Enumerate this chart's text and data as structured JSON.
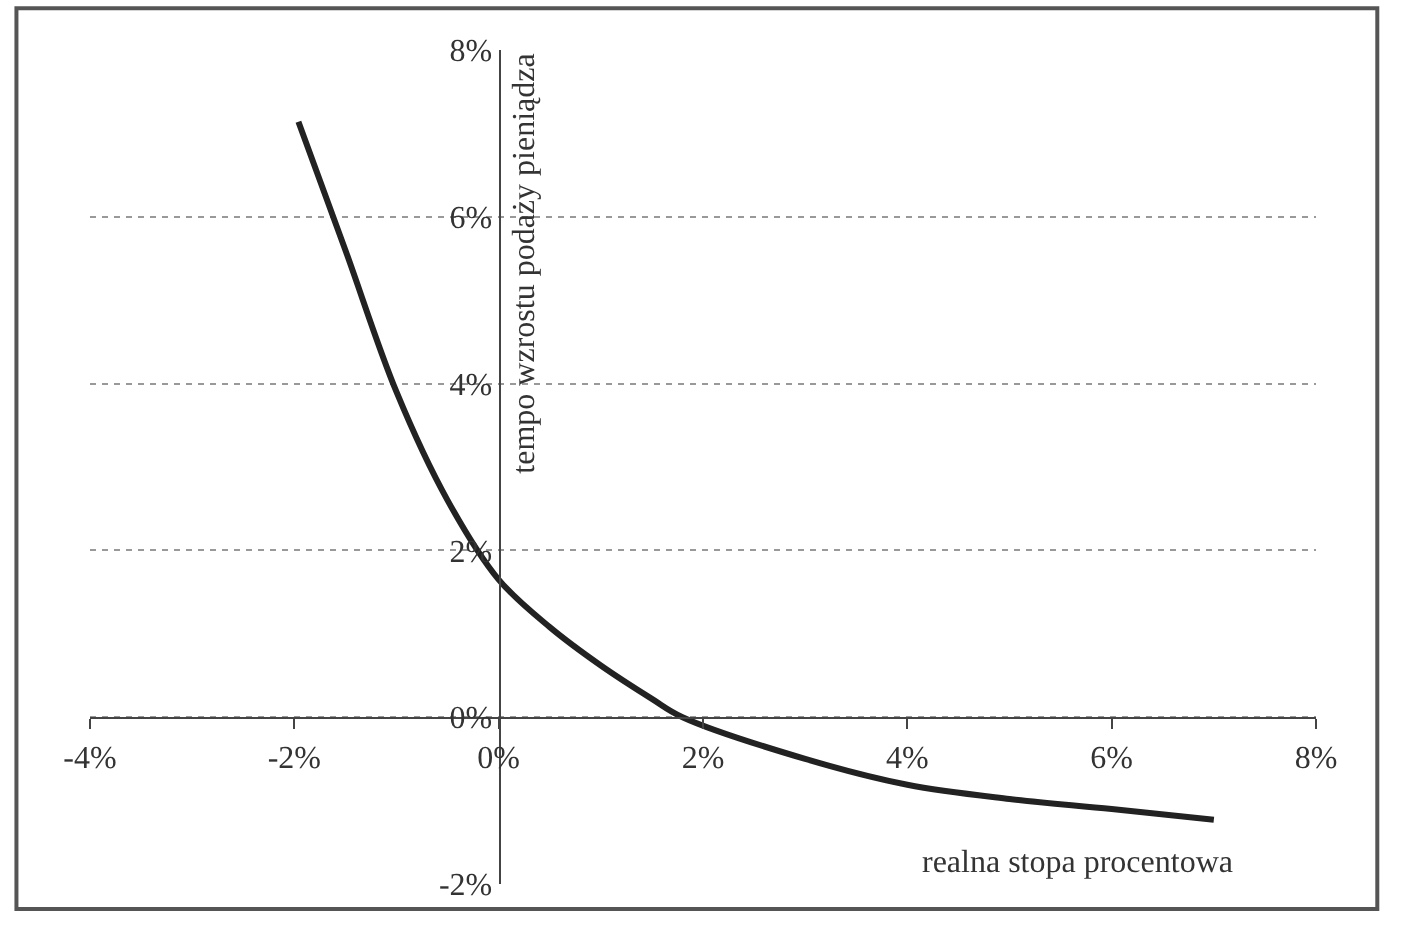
{
  "chart_data": {
    "type": "line",
    "xlabel": "realna stopa procentowa",
    "ylabel": "tempo wzrostu podaży pieniądza",
    "x": [
      -1.96,
      -1.5,
      -1,
      -0.5,
      0,
      0.5,
      1,
      1.5,
      1.8,
      3,
      4,
      5,
      6,
      7
    ],
    "series": [
      {
        "color": "#222222",
        "values": [
          7.14,
          5.6,
          3.9,
          2.6,
          1.65,
          1.08,
          0.62,
          0.22,
          0,
          -0.5,
          -0.81,
          -0.98,
          -1.1,
          -1.23
        ]
      }
    ],
    "xlim": [
      -4,
      8
    ],
    "xticks": [
      {
        "value": -4,
        "label": "-4%"
      },
      {
        "value": -2,
        "label": "-2%"
      },
      {
        "value": 0,
        "label": "0%"
      },
      {
        "value": 2,
        "label": "2%"
      },
      {
        "value": 4,
        "label": "4%"
      },
      {
        "value": 6,
        "label": "6%"
      },
      {
        "value": 8,
        "label": "8%"
      }
    ],
    "ylim": [
      -2,
      8
    ],
    "yticks": [
      {
        "value": -2,
        "label": "-2%"
      },
      {
        "value": 0,
        "label": "0%"
      },
      {
        "value": 2,
        "label": "2%"
      },
      {
        "value": 4,
        "label": "4%"
      },
      {
        "value": 6,
        "label": "6%"
      },
      {
        "value": 8,
        "label": "8%"
      }
    ],
    "grid": "y",
    "legend": false,
    "marker": "none",
    "line_style": "solid"
  }
}
